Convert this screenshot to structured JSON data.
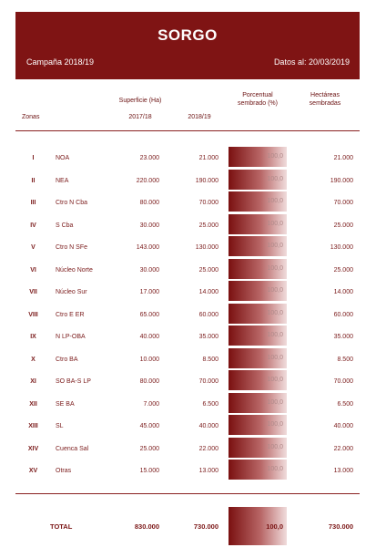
{
  "header": {
    "title": "SORGO",
    "campaign": "Campaña 2018/19",
    "date": "Datos al: 20/03/2019"
  },
  "columns": {
    "zonas": "Zonas",
    "superficie": "Superficie (Ha)",
    "year1": "2017/18",
    "year2": "2018/19",
    "porcentual": "Porcentual",
    "sembrado": "sembrado (%)",
    "hectareas": "Hectáreas",
    "sembradas": "sembradas"
  },
  "rows": [
    {
      "num": "I",
      "zona": "NOA",
      "s1718": "23.000",
      "s1819": "21.000",
      "pct": "100,0",
      "ha": "21.000"
    },
    {
      "num": "II",
      "zona": "NEA",
      "s1718": "220.000",
      "s1819": "190.000",
      "pct": "100,0",
      "ha": "190.000"
    },
    {
      "num": "III",
      "zona": "Ctro N Cba",
      "s1718": "80.000",
      "s1819": "70.000",
      "pct": "100,0",
      "ha": "70.000"
    },
    {
      "num": "IV",
      "zona": "S Cba",
      "s1718": "30.000",
      "s1819": "25.000",
      "pct": "100,0",
      "ha": "25.000"
    },
    {
      "num": "V",
      "zona": "Ctro N SFe",
      "s1718": "143.000",
      "s1819": "130.000",
      "pct": "100,0",
      "ha": "130.000"
    },
    {
      "num": "VI",
      "zona": "Núcleo Norte",
      "s1718": "30.000",
      "s1819": "25.000",
      "pct": "100,0",
      "ha": "25.000"
    },
    {
      "num": "VII",
      "zona": "Núcleo Sur",
      "s1718": "17.000",
      "s1819": "14.000",
      "pct": "100,0",
      "ha": "14.000"
    },
    {
      "num": "VIII",
      "zona": "Ctro E ER",
      "s1718": "65.000",
      "s1819": "60.000",
      "pct": "100,0",
      "ha": "60.000"
    },
    {
      "num": "IX",
      "zona": "N LP-OBA",
      "s1718": "40.000",
      "s1819": "35.000",
      "pct": "100,0",
      "ha": "35.000"
    },
    {
      "num": "X",
      "zona": "Ctro BA",
      "s1718": "10.000",
      "s1819": "8.500",
      "pct": "100,0",
      "ha": "8.500"
    },
    {
      "num": "XI",
      "zona": "SO BA-S LP",
      "s1718": "80.000",
      "s1819": "70.000",
      "pct": "100,0",
      "ha": "70.000"
    },
    {
      "num": "XII",
      "zona": "SE BA",
      "s1718": "7.000",
      "s1819": "6.500",
      "pct": "100,0",
      "ha": "6.500"
    },
    {
      "num": "XIII",
      "zona": "SL",
      "s1718": "45.000",
      "s1819": "40.000",
      "pct": "100,0",
      "ha": "40.000"
    },
    {
      "num": "XIV",
      "zona": "Cuenca Sal",
      "s1718": "25.000",
      "s1819": "22.000",
      "pct": "100,0",
      "ha": "22.000"
    },
    {
      "num": "XV",
      "zona": "Otras",
      "s1718": "15.000",
      "s1819": "13.000",
      "pct": "100,0",
      "ha": "13.000"
    }
  ],
  "total": {
    "label": "TOTAL",
    "s1718": "830.000",
    "s1819": "730.000",
    "pct": "100,0",
    "ha": "730.000"
  }
}
